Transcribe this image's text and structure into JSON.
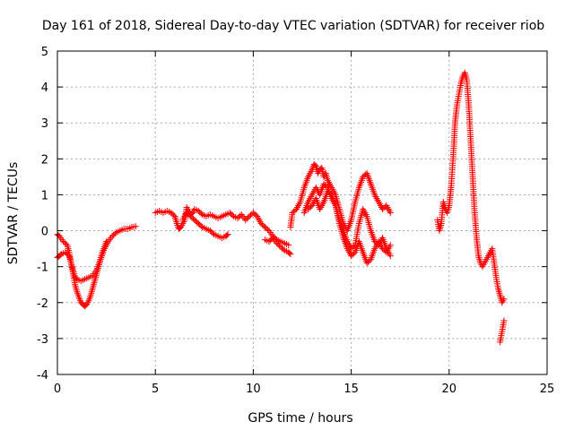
{
  "chart_data": {
    "type": "scatter",
    "title": "Day 161 of 2018, Sidereal Day-to-day VTEC variation (SDTVAR) for receiver riob",
    "xlabel": "GPS time / hours",
    "ylabel": "SDTVAR / TECUs",
    "xlim": [
      0,
      25
    ],
    "ylim": [
      -4,
      5
    ],
    "xticks": [
      0,
      5,
      10,
      15,
      20,
      25
    ],
    "yticks": [
      -4,
      -3,
      -2,
      -1,
      0,
      1,
      2,
      3,
      4,
      5
    ],
    "grid": true,
    "marker": "+",
    "color": "#ff0000",
    "series": [
      {
        "name": "SDTVAR",
        "segments": [
          {
            "x": [
              0.0,
              0.1,
              0.2,
              0.4,
              0.6,
              0.7,
              0.8,
              0.9,
              1.0,
              1.2,
              1.4,
              1.6,
              1.8,
              2.0,
              2.2,
              2.4,
              2.6,
              2.8,
              3.0,
              3.2,
              3.4,
              3.6,
              3.8,
              4.0
            ],
            "y": [
              -0.75,
              -0.7,
              -0.65,
              -0.6,
              -0.7,
              -0.9,
              -1.1,
              -1.3,
              -1.35,
              -1.4,
              -1.35,
              -1.3,
              -1.25,
              -1.1,
              -0.8,
              -0.5,
              -0.3,
              -0.15,
              -0.05,
              0.0,
              0.05,
              0.05,
              0.1,
              0.12
            ]
          },
          {
            "x": [
              0.0,
              0.1,
              0.3,
              0.5,
              0.6,
              0.7,
              0.8,
              0.9,
              1.0,
              1.1,
              1.2,
              1.3,
              1.4,
              1.5,
              1.6,
              1.7,
              1.8,
              1.9,
              2.0,
              2.1,
              2.2,
              2.3,
              2.4,
              2.5
            ],
            "y": [
              -0.1,
              -0.15,
              -0.3,
              -0.4,
              -0.6,
              -0.9,
              -1.2,
              -1.5,
              -1.7,
              -1.85,
              -2.0,
              -2.05,
              -2.1,
              -2.05,
              -1.95,
              -1.8,
              -1.6,
              -1.4,
              -1.2,
              -1.0,
              -0.8,
              -0.6,
              -0.45,
              -0.3
            ]
          },
          {
            "x": [
              5.0,
              5.2,
              5.4,
              5.6,
              5.8,
              6.0,
              6.1,
              6.2,
              6.3,
              6.4,
              6.5,
              6.6,
              6.7,
              6.8,
              6.9,
              7.0,
              7.2,
              7.4,
              7.6,
              7.8,
              8.0,
              8.2,
              8.4,
              8.6,
              8.8,
              9.0,
              9.2,
              9.4,
              9.6,
              9.8,
              10.0,
              10.2,
              10.4,
              10.6,
              10.8,
              11.0,
              11.2,
              11.4,
              11.6,
              11.8
            ],
            "y": [
              0.5,
              0.55,
              0.5,
              0.55,
              0.5,
              0.4,
              0.2,
              0.05,
              0.1,
              0.2,
              0.3,
              0.65,
              0.55,
              0.45,
              0.5,
              0.6,
              0.55,
              0.45,
              0.4,
              0.45,
              0.4,
              0.35,
              0.4,
              0.45,
              0.5,
              0.4,
              0.35,
              0.45,
              0.3,
              0.4,
              0.5,
              0.4,
              0.2,
              0.1,
              0.0,
              -0.15,
              -0.25,
              -0.3,
              -0.35,
              -0.4
            ]
          },
          {
            "x": [
              6.4,
              6.6,
              6.8,
              7.0,
              7.2,
              7.4,
              7.6,
              7.8,
              8.0,
              8.2,
              8.4,
              8.6,
              8.7
            ],
            "y": [
              0.3,
              0.5,
              0.4,
              0.3,
              0.2,
              0.1,
              0.05,
              0.0,
              -0.1,
              -0.15,
              -0.2,
              -0.15,
              -0.1
            ]
          },
          {
            "x": [
              10.6,
              10.8,
              11.0,
              11.2,
              11.4,
              11.6,
              11.8,
              11.9
            ],
            "y": [
              -0.25,
              -0.3,
              -0.2,
              -0.35,
              -0.45,
              -0.55,
              -0.6,
              -0.65
            ]
          },
          {
            "x": [
              11.9,
              12.0,
              12.2,
              12.4,
              12.6,
              12.8,
              13.0,
              13.1,
              13.2,
              13.3,
              13.4,
              13.5,
              13.6,
              13.7,
              13.8,
              14.0,
              14.2,
              14.4,
              14.6,
              14.8,
              15.0,
              15.2,
              15.4,
              15.6,
              15.8,
              16.0,
              16.2,
              16.4,
              16.6,
              16.8,
              17.0
            ],
            "y": [
              0.1,
              0.5,
              0.6,
              0.8,
              1.2,
              1.5,
              1.7,
              1.85,
              1.8,
              1.6,
              1.7,
              1.75,
              1.5,
              1.6,
              1.4,
              1.2,
              1.0,
              0.6,
              0.2,
              0.0,
              0.3,
              0.8,
              1.2,
              1.5,
              1.6,
              1.3,
              1.0,
              0.8,
              0.6,
              0.7,
              0.5
            ]
          },
          {
            "x": [
              12.6,
              12.8,
              13.0,
              13.2,
              13.4,
              13.6,
              13.8,
              14.0,
              14.2,
              14.4,
              14.6,
              14.8,
              15.0,
              15.2,
              15.4,
              15.6,
              15.8,
              16.0,
              16.2,
              16.4,
              16.6,
              16.8,
              17.0
            ],
            "y": [
              0.5,
              0.8,
              1.0,
              1.2,
              1.0,
              1.3,
              1.2,
              0.9,
              0.7,
              0.3,
              0.0,
              -0.3,
              -0.5,
              -0.4,
              0.2,
              0.6,
              0.4,
              0.0,
              -0.3,
              -0.4,
              -0.2,
              -0.5,
              -0.7
            ]
          },
          {
            "x": [
              12.8,
              13.0,
              13.2,
              13.4,
              13.6,
              13.8,
              14.0,
              14.2,
              14.4,
              14.6,
              14.8,
              15.0,
              15.2,
              15.4,
              15.6,
              15.8,
              16.0,
              16.2,
              16.4,
              16.6,
              16.8,
              17.0
            ],
            "y": [
              0.6,
              0.7,
              0.9,
              0.6,
              0.8,
              1.1,
              1.0,
              0.7,
              0.2,
              -0.2,
              -0.5,
              -0.7,
              -0.6,
              -0.3,
              -0.6,
              -0.9,
              -0.8,
              -0.5,
              -0.3,
              -0.5,
              -0.6,
              -0.4
            ]
          },
          {
            "x": [
              19.4,
              19.5,
              19.6,
              19.7,
              19.8,
              19.9,
              20.0,
              20.1,
              20.2,
              20.3,
              20.4,
              20.5,
              20.6,
              20.7,
              20.8,
              20.9,
              21.0,
              21.1,
              21.2,
              21.3,
              21.4,
              21.5,
              21.6,
              21.7,
              21.8,
              21.9,
              22.0,
              22.1,
              22.2,
              22.3,
              22.4,
              22.5,
              22.6,
              22.7,
              22.8
            ],
            "y": [
              0.3,
              0.0,
              0.2,
              0.8,
              0.6,
              0.5,
              0.7,
              1.2,
              2.0,
              3.0,
              3.5,
              3.8,
              4.1,
              4.3,
              4.4,
              4.2,
              3.5,
              2.5,
              1.5,
              0.5,
              -0.2,
              -0.7,
              -0.9,
              -1.0,
              -0.9,
              -0.8,
              -0.7,
              -0.6,
              -0.5,
              -0.9,
              -1.3,
              -1.6,
              -1.8,
              -2.0,
              -1.9
            ]
          },
          {
            "x": [
              22.6,
              22.7,
              22.8
            ],
            "y": [
              -3.1,
              -2.8,
              -2.5
            ]
          }
        ]
      }
    ]
  }
}
